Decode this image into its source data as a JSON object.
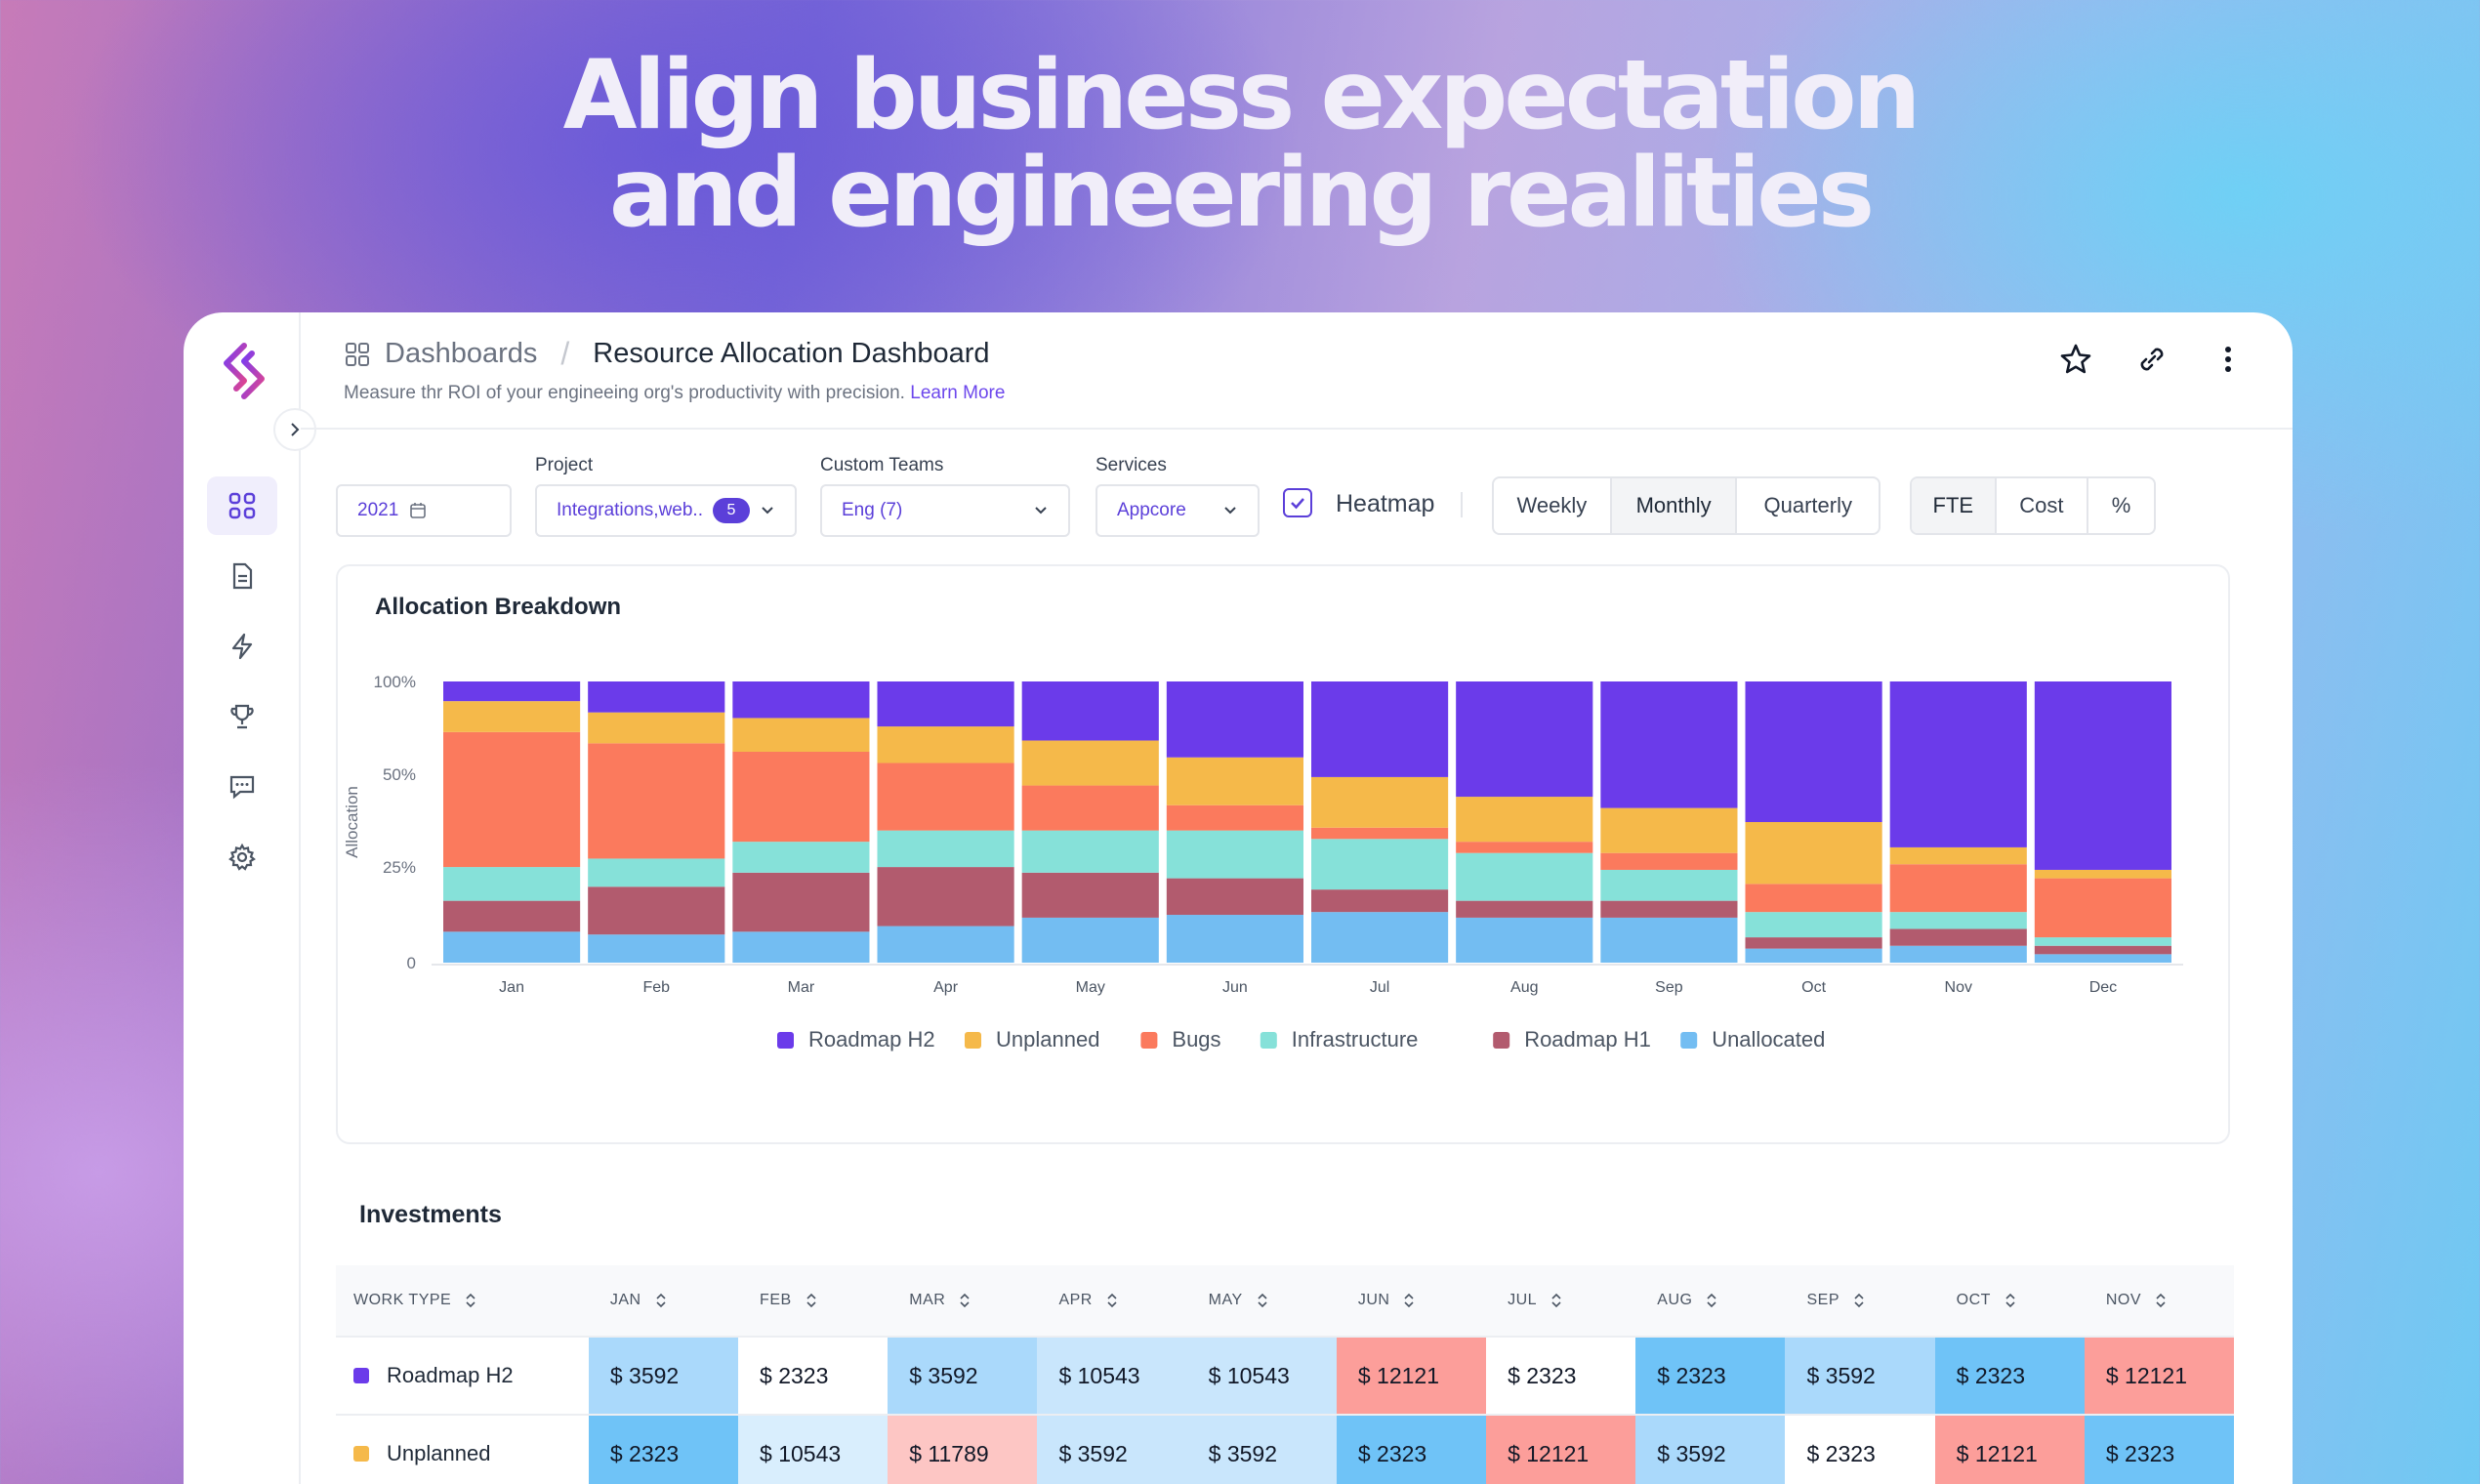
{
  "hero": {
    "line1": "Align business expectation",
    "line2": "and engineering realities"
  },
  "header": {
    "breadcrumb_parent": "Dashboards",
    "breadcrumb_separator": "/",
    "title": "Resource Allocation Dashboard",
    "subtitle": "Measure thr ROI of your engineeing org's productivity with precision.",
    "learn_more": "Learn More"
  },
  "sidebar": {
    "items": [
      "dashboard-icon",
      "document-icon",
      "lightning-icon",
      "trophy-icon",
      "chat-icon",
      "gear-icon"
    ]
  },
  "filters": {
    "year": "2021",
    "project_label": "Project",
    "project_value": "Integrations,web..",
    "project_count": "5",
    "teams_label": "Custom Teams",
    "teams_value": "Eng (7)",
    "services_label": "Services",
    "services_value": "Appcore",
    "heatmap_label": "Heatmap",
    "heatmap_checked": true,
    "period_options": [
      "Weekly",
      "Monthly",
      "Quarterly"
    ],
    "period_selected": "Monthly",
    "metric_options": [
      "FTE",
      "Cost",
      "%"
    ],
    "metric_selected": "FTE"
  },
  "chart_data": {
    "type": "bar",
    "stacked": true,
    "title": "Allocation Breakdown",
    "ylabel": "Allocation",
    "yticks": [
      "0",
      "25%",
      "50%",
      "100%"
    ],
    "categories": [
      "Jan",
      "Feb",
      "Mar",
      "Apr",
      "May",
      "Jun",
      "Jul",
      "Aug",
      "Sep",
      "Oct",
      "Nov",
      "Dec"
    ],
    "series": [
      {
        "name": "Unallocated",
        "color": "#73bdf2",
        "values": [
          11,
          10,
          11,
          13,
          16,
          17,
          18,
          16,
          16,
          5,
          6,
          3
        ]
      },
      {
        "name": "Roadmap H1",
        "color": "#b25b6e",
        "values": [
          11,
          17,
          21,
          21,
          16,
          13,
          8,
          6,
          6,
          4,
          6,
          3
        ]
      },
      {
        "name": "Infrastructure",
        "color": "#86e1d9",
        "values": [
          12,
          10,
          11,
          13,
          15,
          17,
          18,
          17,
          11,
          9,
          6,
          3
        ]
      },
      {
        "name": "Bugs",
        "color": "#fb7a5d",
        "values": [
          48,
          41,
          32,
          24,
          16,
          9,
          4,
          4,
          6,
          10,
          17,
          21
        ]
      },
      {
        "name": "Unplanned",
        "color": "#f5b94a",
        "values": [
          11,
          11,
          12,
          13,
          16,
          17,
          18,
          16,
          16,
          22,
          6,
          3
        ]
      },
      {
        "name": "Roadmap H2",
        "color": "#6b3bea",
        "values": [
          7,
          11,
          13,
          16,
          21,
          27,
          34,
          41,
          45,
          50,
          59,
          67
        ]
      }
    ],
    "legend": [
      {
        "name": "Roadmap H2",
        "color": "#6b3bea"
      },
      {
        "name": "Unplanned",
        "color": "#f5b94a"
      },
      {
        "name": "Bugs",
        "color": "#fb7a5d"
      },
      {
        "name": "Infrastructure",
        "color": "#86e1d9"
      },
      {
        "name": "Roadmap H1",
        "color": "#b25b6e"
      },
      {
        "name": "Unallocated",
        "color": "#73bdf2"
      }
    ],
    "legend_position": "bottom",
    "grid": false
  },
  "investments": {
    "title": "Investments",
    "columns": [
      "WORK TYPE",
      "JAN",
      "FEB",
      "MAR",
      "APR",
      "MAY",
      "JUN",
      "JUL",
      "AUG",
      "SEP",
      "OCT",
      "NOV"
    ],
    "rows": [
      {
        "work_type": "Roadmap H2",
        "color": "#6b3bea",
        "values": [
          "$ 3592",
          "$ 2323",
          "$ 3592",
          "$ 10543",
          "$ 10543",
          "$ 12121",
          "$ 2323",
          "$ 2323",
          "$ 3592",
          "$ 2323",
          "$ 12121"
        ],
        "heat": [
          "#aad9fb",
          "#ffffff",
          "#aad9fb",
          "#c9e6fc",
          "#c9e6fc",
          "#fc9e9a",
          "#ffffff",
          "#6fc3f7",
          "#aad9fb",
          "#6fc3f7",
          "#fc9e9a"
        ]
      },
      {
        "work_type": "Unplanned",
        "color": "#f5b94a",
        "values": [
          "$ 2323",
          "$ 10543",
          "$ 11789",
          "$ 3592",
          "$ 3592",
          "$ 2323",
          "$ 12121",
          "$ 3592",
          "$ 2323",
          "$ 12121",
          "$ 2323"
        ],
        "heat": [
          "#6fc3f7",
          "#d9eefd",
          "#fdc6c4",
          "#c9e6fc",
          "#c9e6fc",
          "#6fc3f7",
          "#fc9e9a",
          "#aad9fb",
          "#ffffff",
          "#fc9e9a",
          "#6fc3f7"
        ]
      }
    ]
  }
}
